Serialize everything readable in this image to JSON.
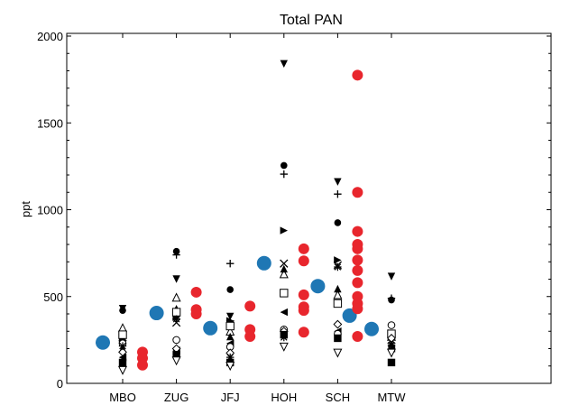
{
  "chart_data": {
    "type": "scatter",
    "title": "Total PAN",
    "xlabel": "",
    "ylabel": "ppt",
    "ylim": [
      0,
      2000
    ],
    "yticks": [
      0,
      500,
      1000,
      1500,
      2000
    ],
    "categories": [
      "MBO",
      "ZUG",
      "JFJ",
      "HOH",
      "SCH",
      "MTW"
    ],
    "grid": false,
    "colors": {
      "blue": "#1f77b4",
      "red": "#e8262d",
      "black": "#000000"
    },
    "series": [
      {
        "marker": "circle-large-blue",
        "points": [
          {
            "cat": "MBO",
            "y": 235
          },
          {
            "cat": "ZUG",
            "y": 405
          },
          {
            "cat": "JFJ",
            "y": 318
          },
          {
            "cat": "HOH",
            "y": 692
          },
          {
            "cat": "SCH",
            "y": 560
          },
          {
            "cat": "SCH",
            "y": 390,
            "offset": 0.6
          },
          {
            "cat": "MTW",
            "y": 313
          }
        ]
      },
      {
        "marker": "circle-red",
        "points": [
          {
            "cat": "MBO",
            "y": 180
          },
          {
            "cat": "MBO",
            "y": 145
          },
          {
            "cat": "MBO",
            "y": 105
          },
          {
            "cat": "ZUG",
            "y": 525
          },
          {
            "cat": "ZUG",
            "y": 425
          },
          {
            "cat": "ZUG",
            "y": 400
          },
          {
            "cat": "JFJ",
            "y": 445
          },
          {
            "cat": "JFJ",
            "y": 310
          },
          {
            "cat": "JFJ",
            "y": 270
          },
          {
            "cat": "HOH",
            "y": 775
          },
          {
            "cat": "HOH",
            "y": 705
          },
          {
            "cat": "HOH",
            "y": 510
          },
          {
            "cat": "HOH",
            "y": 440
          },
          {
            "cat": "HOH",
            "y": 420
          },
          {
            "cat": "HOH",
            "y": 295
          },
          {
            "cat": "SCH",
            "y": 1775
          },
          {
            "cat": "SCH",
            "y": 1100
          },
          {
            "cat": "SCH",
            "y": 875
          },
          {
            "cat": "SCH",
            "y": 800
          },
          {
            "cat": "SCH",
            "y": 775
          },
          {
            "cat": "SCH",
            "y": 710
          },
          {
            "cat": "SCH",
            "y": 650
          },
          {
            "cat": "SCH",
            "y": 580
          },
          {
            "cat": "SCH",
            "y": 500
          },
          {
            "cat": "SCH",
            "y": 460
          },
          {
            "cat": "SCH",
            "y": 430
          },
          {
            "cat": "SCH",
            "y": 270
          }
        ]
      },
      {
        "marker": "circle-filled",
        "points": [
          {
            "cat": "MBO",
            "y": 420
          },
          {
            "cat": "ZUG",
            "y": 760
          },
          {
            "cat": "JFJ",
            "y": 540
          },
          {
            "cat": "HOH",
            "y": 1255
          },
          {
            "cat": "SCH",
            "y": 925
          },
          {
            "cat": "MTW",
            "y": 480
          }
        ]
      },
      {
        "marker": "triangle-down-filled",
        "points": [
          {
            "cat": "MBO",
            "y": 430
          },
          {
            "cat": "ZUG",
            "y": 600
          },
          {
            "cat": "JFJ",
            "y": 385
          },
          {
            "cat": "HOH",
            "y": 1840
          },
          {
            "cat": "SCH",
            "y": 1160
          },
          {
            "cat": "MTW",
            "y": 615
          }
        ]
      },
      {
        "marker": "plus",
        "points": [
          {
            "cat": "ZUG",
            "y": 740
          },
          {
            "cat": "JFJ",
            "y": 690
          },
          {
            "cat": "HOH",
            "y": 1205
          },
          {
            "cat": "SCH",
            "y": 1090
          },
          {
            "cat": "MTW",
            "y": 490
          }
        ]
      },
      {
        "marker": "triangle-right-filled",
        "points": [
          {
            "cat": "MBO",
            "y": 250
          },
          {
            "cat": "ZUG",
            "y": 380
          },
          {
            "cat": "JFJ",
            "y": 360
          },
          {
            "cat": "HOH",
            "y": 880
          },
          {
            "cat": "SCH",
            "y": 710
          },
          {
            "cat": "MTW",
            "y": 290
          }
        ]
      },
      {
        "marker": "triangle-up-open",
        "points": [
          {
            "cat": "MBO",
            "y": 320
          },
          {
            "cat": "ZUG",
            "y": 495
          },
          {
            "cat": "JFJ",
            "y": 300
          },
          {
            "cat": "HOH",
            "y": 630
          },
          {
            "cat": "SCH",
            "y": 510
          },
          {
            "cat": "MTW",
            "y": 270
          }
        ]
      },
      {
        "marker": "x",
        "points": [
          {
            "cat": "MBO",
            "y": 265
          },
          {
            "cat": "ZUG",
            "y": 350
          },
          {
            "cat": "JFJ",
            "y": 340
          },
          {
            "cat": "HOH",
            "y": 690
          },
          {
            "cat": "SCH",
            "y": 680
          },
          {
            "cat": "MTW",
            "y": 250
          }
        ]
      },
      {
        "marker": "triangle-up-filled",
        "points": [
          {
            "cat": "MBO",
            "y": 200
          },
          {
            "cat": "ZUG",
            "y": 430
          },
          {
            "cat": "JFJ",
            "y": 270
          },
          {
            "cat": "HOH",
            "y": 660
          },
          {
            "cat": "SCH",
            "y": 545
          },
          {
            "cat": "MTW",
            "y": 230
          }
        ]
      },
      {
        "marker": "square-open",
        "points": [
          {
            "cat": "MBO",
            "y": 280
          },
          {
            "cat": "ZUG",
            "y": 410
          },
          {
            "cat": "JFJ",
            "y": 330
          },
          {
            "cat": "HOH",
            "y": 520
          },
          {
            "cat": "SCH",
            "y": 460
          },
          {
            "cat": "MTW",
            "y": 285
          }
        ]
      },
      {
        "marker": "triangle-left-filled",
        "points": [
          {
            "cat": "MBO",
            "y": 150
          },
          {
            "cat": "ZUG",
            "y": 190
          },
          {
            "cat": "JFJ",
            "y": 230
          },
          {
            "cat": "HOH",
            "y": 410
          },
          {
            "cat": "SCH",
            "y": 300
          },
          {
            "cat": "MTW",
            "y": 200
          }
        ]
      },
      {
        "marker": "circle-open",
        "points": [
          {
            "cat": "MBO",
            "y": 230
          },
          {
            "cat": "ZUG",
            "y": 250
          },
          {
            "cat": "JFJ",
            "y": 210
          },
          {
            "cat": "HOH",
            "y": 310
          },
          {
            "cat": "SCH",
            "y": 285
          },
          {
            "cat": "MTW",
            "y": 335
          }
        ]
      },
      {
        "marker": "diamond-open",
        "points": [
          {
            "cat": "MBO",
            "y": 180
          },
          {
            "cat": "ZUG",
            "y": 200
          },
          {
            "cat": "JFJ",
            "y": 175
          },
          {
            "cat": "HOH",
            "y": 300
          },
          {
            "cat": "SCH",
            "y": 340
          },
          {
            "cat": "MTW",
            "y": 260
          }
        ]
      },
      {
        "marker": "square-filled",
        "points": [
          {
            "cat": "MBO",
            "y": 120
          },
          {
            "cat": "ZUG",
            "y": 165
          },
          {
            "cat": "JFJ",
            "y": 120
          },
          {
            "cat": "HOH",
            "y": 280
          },
          {
            "cat": "SCH",
            "y": 260
          },
          {
            "cat": "MTW",
            "y": 120
          }
        ]
      },
      {
        "marker": "star",
        "points": [
          {
            "cat": "MBO",
            "y": 215
          },
          {
            "cat": "ZUG",
            "y": 370
          },
          {
            "cat": "JFJ",
            "y": 150
          },
          {
            "cat": "HOH",
            "y": 265
          },
          {
            "cat": "SCH",
            "y": 670
          },
          {
            "cat": "MTW",
            "y": 220
          }
        ]
      },
      {
        "marker": "triangle-down-open",
        "points": [
          {
            "cat": "MBO",
            "y": 75
          },
          {
            "cat": "ZUG",
            "y": 130
          },
          {
            "cat": "JFJ",
            "y": 100
          },
          {
            "cat": "HOH",
            "y": 210
          },
          {
            "cat": "SCH",
            "y": 175
          },
          {
            "cat": "MTW",
            "y": 175
          }
        ]
      }
    ]
  }
}
